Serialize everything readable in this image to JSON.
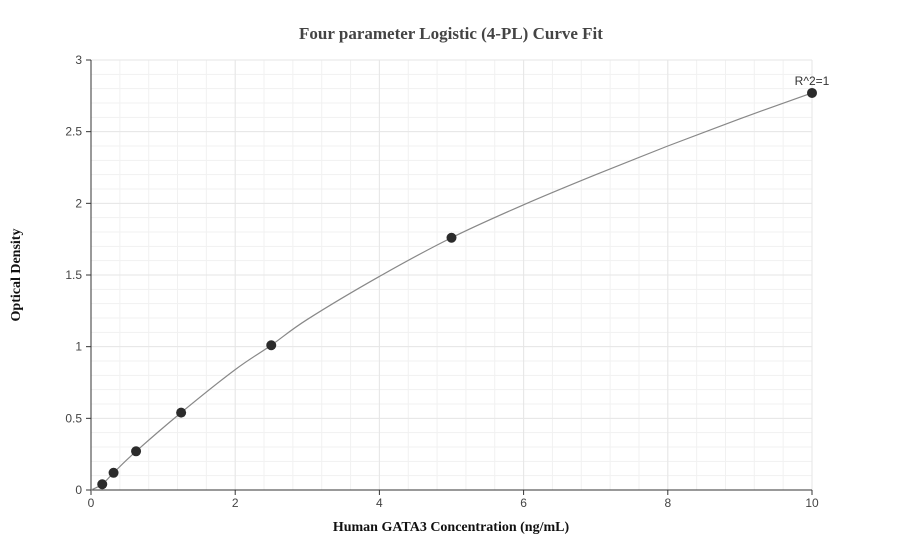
{
  "chart_data": {
    "type": "scatter",
    "title": "Four parameter Logistic (4-PL) Curve Fit",
    "xlabel": "Human GATA3 Concentration (ng/mL)",
    "ylabel": "Optical Density",
    "xlim": [
      0,
      10
    ],
    "ylim": [
      0,
      3
    ],
    "x_ticks": [
      "0",
      "2",
      "4",
      "6",
      "8",
      "10"
    ],
    "y_ticks": [
      "0",
      "0.5",
      "1",
      "1.5",
      "2",
      "2.5",
      "3"
    ],
    "grid": true,
    "series": [
      {
        "type": "scatter",
        "x": [
          0.156,
          0.313,
          0.625,
          1.25,
          2.5,
          5,
          10
        ],
        "y": [
          0.04,
          0.12,
          0.27,
          0.54,
          1.01,
          1.76,
          2.77
        ]
      },
      {
        "type": "line",
        "x": [
          0,
          0.156,
          0.313,
          0.625,
          1.25,
          2,
          2.5,
          3,
          4,
          5,
          6,
          7,
          8,
          9,
          10
        ],
        "y": [
          0.0,
          0.04,
          0.12,
          0.27,
          0.54,
          0.84,
          1.01,
          1.19,
          1.49,
          1.76,
          1.99,
          2.2,
          2.4,
          2.59,
          2.77
        ]
      }
    ],
    "annotations": [
      {
        "text": "R^2=1",
        "x": 10,
        "y": 2.77
      }
    ],
    "colors": {
      "marker": "#2b2b2b",
      "curve": "#888888",
      "grid": "#e6e6e6",
      "axis": "#333333"
    }
  }
}
